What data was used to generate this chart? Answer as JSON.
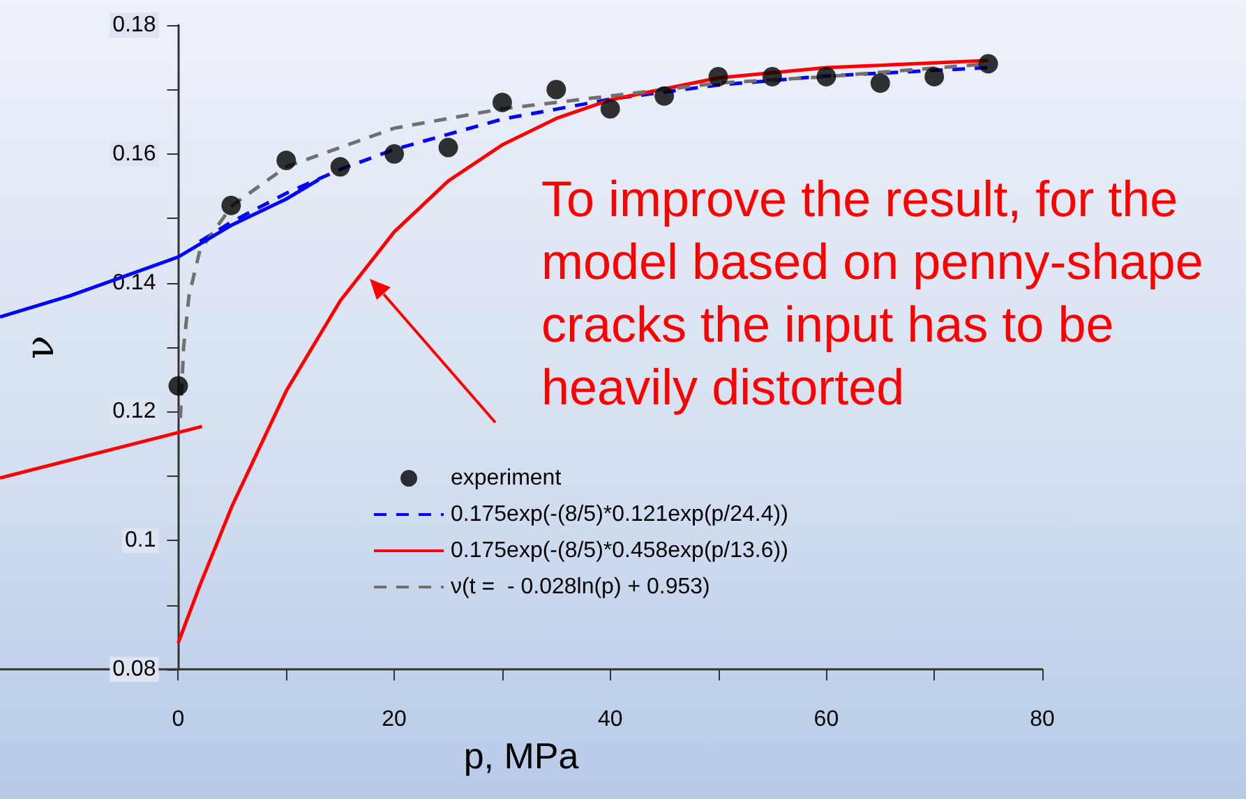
{
  "chart_data": {
    "type": "line",
    "xlabel": "p, MPa",
    "ylabel": "ν",
    "xlim": [
      -16.5,
      80
    ],
    "ylim": [
      0.08,
      0.18
    ],
    "xticks": [
      0,
      {
        "value": 10,
        "label": null
      },
      20,
      {
        "value": 30,
        "label": null
      },
      40,
      {
        "value": 50,
        "label": null
      },
      60,
      {
        "value": 70,
        "label": null
      },
      80
    ],
    "yticks": [
      0.08,
      {
        "value": 0.09,
        "label": null
      },
      0.1,
      {
        "value": 0.11,
        "label": null
      },
      0.12,
      {
        "value": 0.13,
        "label": null
      },
      0.14,
      {
        "value": 0.15,
        "label": null
      },
      0.16,
      {
        "value": 0.17,
        "label": null
      },
      0.18
    ],
    "grid": false,
    "legend": "bottom",
    "annotations": [
      "To improve the result, for the model based on penny-shape cracks the input has to be heavily distorted"
    ],
    "series": [
      {
        "name": "experiment",
        "type": "scatter",
        "marker": "circle",
        "color": "#000000",
        "x": [
          0,
          4.9,
          10,
          15,
          20,
          25,
          30,
          35,
          40,
          45,
          50,
          55,
          60,
          65,
          70,
          75
        ],
        "values": [
          0.124,
          0.152,
          0.159,
          0.158,
          0.16,
          0.161,
          0.168,
          0.17,
          0.167,
          0.169,
          0.172,
          0.172,
          0.172,
          0.171,
          0.172,
          0.174
        ]
      },
      {
        "name": "0.175exp(-(8/5)*0.121exp(p/24.4))",
        "type": "line",
        "line_style": "dashed",
        "color": "#0000ff",
        "x": [
          2,
          5,
          10,
          15,
          20,
          30,
          40,
          50,
          60,
          75
        ],
        "values": [
          0.1464,
          0.1495,
          0.1539,
          0.1576,
          0.1607,
          0.1654,
          0.1685,
          0.1707,
          0.1721,
          0.1734
        ]
      },
      {
        "name": "0.175exp(-(8/5)*0.458exp(p/13.6))",
        "type": "line",
        "line_style": "solid",
        "color": "#ff0000",
        "x": [
          0,
          2,
          5,
          10,
          15,
          20,
          25,
          30,
          35,
          40,
          50,
          60,
          75
        ],
        "values": [
          0.0841,
          0.093,
          0.1054,
          0.1232,
          0.1372,
          0.1479,
          0.1558,
          0.1614,
          0.1655,
          0.1684,
          0.1718,
          0.1734,
          0.1745
        ]
      },
      {
        "name": "ν(t =  - 0.028ln(p) + 0.953)",
        "type": "line",
        "line_style": "dashed",
        "color": "#707070",
        "x": [
          0.2,
          0.5,
          1,
          2,
          5,
          10,
          20,
          30,
          40,
          50,
          60,
          75
        ],
        "values": [
          0.119,
          0.13,
          0.138,
          0.145,
          0.152,
          0.158,
          0.164,
          0.167,
          0.169,
          0.171,
          0.172,
          0.174
        ]
      },
      {
        "line_style": "solid",
        "color": "#0000ff",
        "x": [
          -16.5,
          -10,
          -5,
          0,
          5,
          10,
          13
        ],
        "values": [
          0.1347,
          0.138,
          0.141,
          0.144,
          0.149,
          0.153,
          0.156
        ]
      },
      {
        "line_style": "solid",
        "color": "#ff0000",
        "x": [
          -16.5,
          2.2
        ],
        "values": [
          0.1097,
          0.1177
        ]
      }
    ]
  }
}
